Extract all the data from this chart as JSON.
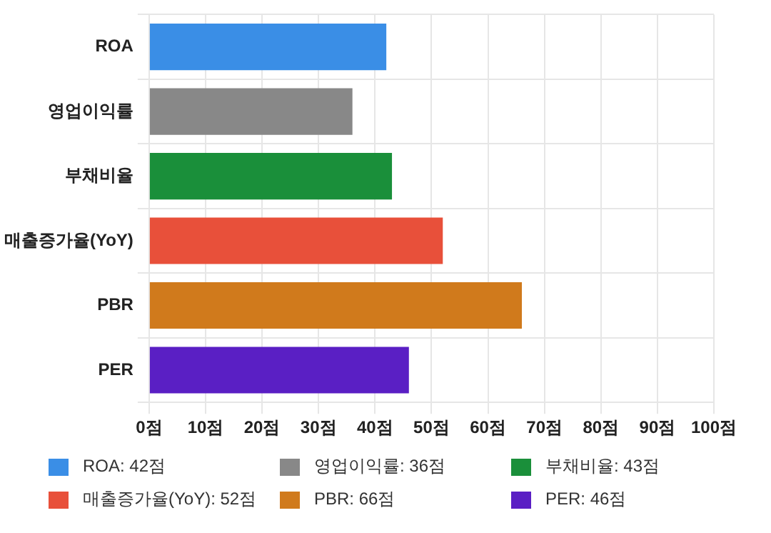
{
  "chart_data": {
    "type": "bar",
    "orientation": "horizontal",
    "categories": [
      "ROA",
      "영업이익률",
      "부채비율",
      "매출증가율(YoY)",
      "PBR",
      "PER"
    ],
    "series": [
      {
        "name": "ROA: 42점",
        "color": "#3a8ee6",
        "values": [
          42,
          null,
          null,
          null,
          null,
          null
        ]
      },
      {
        "name": "영업이익률: 36점",
        "color": "#888888",
        "values": [
          null,
          36,
          null,
          null,
          null,
          null
        ]
      },
      {
        "name": "부채비율: 43점",
        "color": "#1a8f3a",
        "values": [
          null,
          null,
          43,
          null,
          null,
          null
        ]
      },
      {
        "name": "매출증가율(YoY): 52점",
        "color": "#e8503a",
        "values": [
          null,
          null,
          null,
          52,
          null,
          null
        ]
      },
      {
        "name": "PBR: 66점",
        "color": "#d07a1c",
        "values": [
          null,
          null,
          null,
          null,
          66,
          null
        ]
      },
      {
        "name": "PER: 46점",
        "color": "#5a1fc4",
        "values": [
          null,
          null,
          null,
          null,
          null,
          46
        ]
      }
    ],
    "xlim": [
      0,
      100
    ],
    "xticks": [
      {
        "value": 0,
        "label": "0점"
      },
      {
        "value": 10,
        "label": "10점"
      },
      {
        "value": 20,
        "label": "20점"
      },
      {
        "value": 30,
        "label": "30점"
      },
      {
        "value": 40,
        "label": "40점"
      },
      {
        "value": 50,
        "label": "50점"
      },
      {
        "value": 60,
        "label": "60점"
      },
      {
        "value": 70,
        "label": "70점"
      },
      {
        "value": 80,
        "label": "80점"
      },
      {
        "value": 90,
        "label": "90점"
      },
      {
        "value": 100,
        "label": "100점"
      }
    ],
    "grid": true,
    "legend": "bottom"
  }
}
